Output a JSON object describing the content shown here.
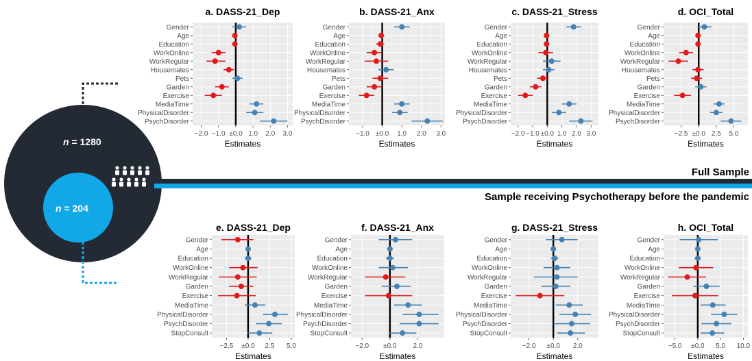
{
  "labels": {
    "full_sample": "Full Sample",
    "psychotherapy_sample": "Sample receiving Psychotherapy before the pandemic",
    "n_italic": "n",
    "n_full_value": " = 1280",
    "n_psy_value": " = 204"
  },
  "colors": {
    "positive": "#4682b4",
    "negative": "#e31a1c",
    "dark": "#232a34",
    "light_blue": "#12a8e8",
    "panel_bg": "#ebebeb",
    "grid": "#ffffff"
  },
  "icons": [
    "people-group-icon"
  ],
  "chart_data": [
    {
      "type": "forest",
      "title": "a. DASS-21_Dep",
      "xlabel": "Estimates",
      "xlim": [
        -2.5,
        3.3
      ],
      "xticks": [
        -2.0,
        -1.0,
        0.0,
        1.0,
        2.0,
        3.0
      ],
      "xtick_labels": [
        "−2.0",
        "−1.0",
        "±0.0",
        "1.0",
        "2.0",
        "3.0"
      ],
      "terms": [
        "Gender",
        "Age",
        "Education",
        "WorkOnline",
        "WorkRegular",
        "Housemates",
        "Pets",
        "Garden",
        "Exercise",
        "MediaTime",
        "PhysicalDisorder",
        "PsychDisorder"
      ],
      "estimates": [
        0.2,
        -0.05,
        -0.05,
        -1.0,
        -1.2,
        -0.4,
        0.1,
        -0.8,
        -1.3,
        1.2,
        1.1,
        2.2
      ],
      "ci_low": [
        -0.2,
        -0.2,
        -0.2,
        -1.4,
        -1.7,
        -0.7,
        -0.2,
        -1.2,
        -1.8,
        0.8,
        0.6,
        1.4
      ],
      "ci_high": [
        0.6,
        0.1,
        0.1,
        -0.6,
        -0.6,
        -0.1,
        0.4,
        -0.4,
        -0.8,
        1.6,
        1.6,
        3.0
      ]
    },
    {
      "type": "forest",
      "title": "b. DASS-21_Anx",
      "xlabel": "Estimates",
      "xlim": [
        -1.7,
        3.2
      ],
      "xticks": [
        -1.0,
        0.0,
        1.0,
        2.0,
        3.0
      ],
      "xtick_labels": [
        "−1.0",
        "±0.0",
        "1.0",
        "2.0",
        "3.0"
      ],
      "terms": [
        "Gender",
        "Age",
        "Education",
        "WorkOnline",
        "WorkRegular",
        "Housemates",
        "Pets",
        "Garden",
        "Exercise",
        "MediaTime",
        "PhysicalDisorder",
        "PsychDisorder"
      ],
      "estimates": [
        1.0,
        -0.05,
        -0.1,
        -0.4,
        -0.3,
        0.2,
        -0.1,
        -0.4,
        -0.8,
        1.0,
        0.9,
        2.3
      ],
      "ci_low": [
        0.6,
        -0.2,
        -0.3,
        -0.8,
        -0.9,
        -0.2,
        -0.5,
        -0.8,
        -1.2,
        0.6,
        0.5,
        1.5
      ],
      "ci_high": [
        1.4,
        0.1,
        0.1,
        0.0,
        0.3,
        0.6,
        0.3,
        0.0,
        -0.4,
        1.4,
        1.3,
        3.1
      ]
    },
    {
      "type": "forest",
      "title": "c. DASS-21_Stress",
      "xlabel": "Estimates",
      "xlim": [
        -2.5,
        3.5
      ],
      "xticks": [
        -2.0,
        -1.0,
        0.0,
        1.0,
        2.0,
        3.0
      ],
      "xtick_labels": [
        "−2.0",
        "−1.0",
        "±0.0",
        "1.0",
        "2.0",
        "3.0"
      ],
      "terms": [
        "Gender",
        "Age",
        "Education",
        "WorkOnline",
        "WorkRegular",
        "Housemates",
        "Pets",
        "Garden",
        "Exercise",
        "MediaTime",
        "PhysicalDisorder",
        "PsychDisorder"
      ],
      "estimates": [
        1.8,
        -0.05,
        -0.05,
        -0.1,
        0.3,
        0.1,
        -0.3,
        -0.8,
        -1.5,
        1.5,
        0.8,
        2.3
      ],
      "ci_low": [
        1.3,
        -0.2,
        -0.2,
        -0.6,
        -0.3,
        -0.3,
        -0.7,
        -1.2,
        -2.0,
        1.0,
        0.3,
        1.5
      ],
      "ci_high": [
        2.3,
        0.1,
        0.1,
        0.4,
        0.9,
        0.5,
        0.1,
        -0.4,
        -1.0,
        2.0,
        1.3,
        3.1
      ]
    },
    {
      "type": "forest",
      "title": "d. OCI_Total",
      "xlabel": "Estimates",
      "xlim": [
        -5.0,
        7.0
      ],
      "xticks": [
        -2.5,
        0.0,
        2.5,
        5.0
      ],
      "xtick_labels": [
        "−2.5",
        "±0.0",
        "2.5",
        "5.0"
      ],
      "terms": [
        "Gender",
        "Age",
        "Education",
        "WorkOnline",
        "WorkRegular",
        "Housemates",
        "Pets",
        "Garden",
        "Exercise",
        "MediaTime",
        "PhysicalDisorder",
        "PsychDisorder"
      ],
      "estimates": [
        0.8,
        -0.1,
        -0.1,
        -1.8,
        -2.9,
        -0.1,
        -0.3,
        0.3,
        -2.3,
        2.9,
        2.5,
        4.6
      ],
      "ci_low": [
        -0.2,
        -0.4,
        -0.4,
        -2.8,
        -4.3,
        -0.9,
        -1.1,
        -0.5,
        -3.5,
        2.1,
        1.6,
        3.1
      ],
      "ci_high": [
        1.8,
        0.2,
        0.2,
        -0.8,
        -1.5,
        0.7,
        0.5,
        1.1,
        -1.1,
        3.7,
        3.4,
        6.1
      ]
    },
    {
      "type": "forest",
      "title": "e. DASS-21_Dep",
      "xlabel": "Estimates",
      "xlim": [
        -4.2,
        5.4
      ],
      "xticks": [
        -2.5,
        0.0,
        2.5,
        5.0
      ],
      "xtick_labels": [
        "−2.5",
        "±0.0",
        "2.5",
        "5.0"
      ],
      "terms": [
        "Gender",
        "Age",
        "Education",
        "WorkOnline",
        "WorkRegular",
        "Garden",
        "Exercise",
        "MediaTime",
        "PhysicalDisorder",
        "PsychDisorder",
        "StopConsult"
      ],
      "estimates": [
        -1.2,
        0.0,
        0.0,
        -0.6,
        -1.2,
        -0.8,
        -1.3,
        0.8,
        3.1,
        2.4,
        1.3
      ],
      "ci_low": [
        -3.1,
        -0.3,
        -0.4,
        -2.2,
        -3.4,
        -2.2,
        -3.5,
        -0.4,
        1.7,
        0.9,
        -0.1
      ],
      "ci_high": [
        0.6,
        0.3,
        0.4,
        1.1,
        1.0,
        0.6,
        0.9,
        2.0,
        4.6,
        3.9,
        2.8
      ]
    },
    {
      "type": "forest",
      "title": "f. DASS-21_Anx",
      "xlabel": "Estimates",
      "xlim": [
        -2.8,
        3.9
      ],
      "xticks": [
        -2.0,
        0.0,
        2.0
      ],
      "xtick_labels": [
        "−2.0",
        "±0.0",
        "2.0"
      ],
      "terms": [
        "Gender",
        "Age",
        "Education",
        "WorkOnline",
        "WorkRegular",
        "Garden",
        "Exercise",
        "MediaTime",
        "PhysicalDisorder",
        "PsychDisorder",
        "StopConsult"
      ],
      "estimates": [
        0.4,
        0.0,
        0.0,
        0.2,
        -0.3,
        0.5,
        -0.1,
        1.3,
        2.1,
        2.1,
        0.9
      ],
      "ci_low": [
        -0.8,
        -0.2,
        -0.3,
        -0.8,
        -1.8,
        -0.6,
        -1.8,
        0.3,
        0.9,
        0.7,
        -0.1
      ],
      "ci_high": [
        1.6,
        0.2,
        0.3,
        1.3,
        1.1,
        1.5,
        1.6,
        2.3,
        3.5,
        3.5,
        1.9
      ]
    },
    {
      "type": "forest",
      "title": "g. DASS-21_Stress",
      "xlabel": "Estimates",
      "xlim": [
        -3.5,
        3.7
      ],
      "xticks": [
        -2.0,
        0.0,
        2.0
      ],
      "xtick_labels": [
        "−2.0",
        "±0.0",
        "2.0"
      ],
      "terms": [
        "Gender",
        "Age",
        "Education",
        "WorkOnline",
        "WorkRegular",
        "Garden",
        "Exercise",
        "MediaTime",
        "PhysicalDisorder",
        "PsychDisorder",
        "StopConsult"
      ],
      "estimates": [
        0.7,
        0.0,
        0.1,
        0.3,
        0.3,
        0.2,
        -1.1,
        1.3,
        1.8,
        1.5,
        1.4
      ],
      "ci_low": [
        -0.6,
        -0.2,
        -0.2,
        -0.8,
        -1.6,
        -1.0,
        -3.1,
        0.2,
        0.5,
        0.1,
        0.3
      ],
      "ci_high": [
        2.0,
        0.2,
        0.4,
        1.4,
        2.0,
        1.4,
        0.9,
        2.4,
        3.1,
        3.0,
        2.6
      ]
    },
    {
      "type": "forest",
      "title": "h. OCI_Total",
      "xlabel": "Estimates",
      "xlim": [
        -7.5,
        11.0
      ],
      "xticks": [
        -5.0,
        0.0,
        5.0,
        10.0
      ],
      "xtick_labels": [
        "−5.0",
        "±0.0",
        "5.0",
        "10.0"
      ],
      "terms": [
        "Gender",
        "Age",
        "Education",
        "WorkOnline",
        "WorkRegular",
        "Garden",
        "Exercise",
        "MediaTime",
        "PhysicalDisorder",
        "PsychDisorder",
        "StopConsult"
      ],
      "estimates": [
        0.2,
        0.0,
        0.0,
        -0.4,
        -2.3,
        1.9,
        -0.6,
        3.3,
        5.8,
        4.1,
        3.2
      ],
      "ci_low": [
        -4.0,
        -0.6,
        -0.7,
        -4.2,
        -6.5,
        -1.0,
        -5.7,
        0.6,
        2.9,
        0.8,
        0.6
      ],
      "ci_high": [
        4.4,
        0.6,
        0.7,
        3.4,
        1.8,
        4.8,
        4.5,
        6.1,
        8.7,
        7.4,
        5.8
      ]
    }
  ]
}
